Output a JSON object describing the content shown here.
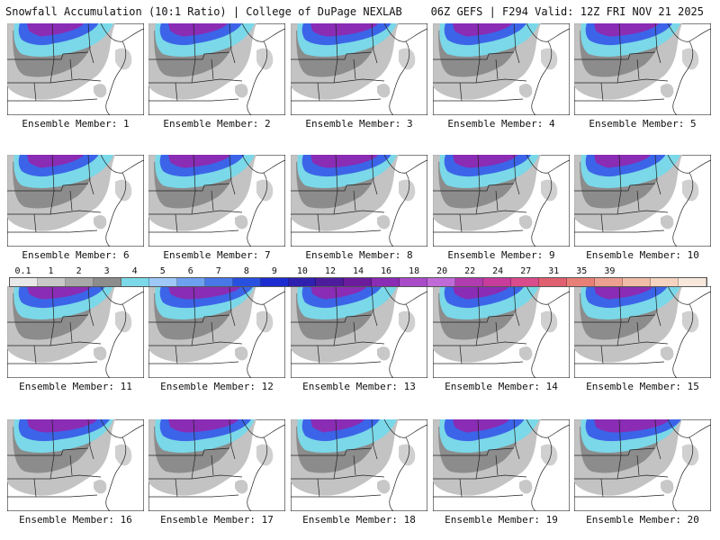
{
  "header": {
    "left": "Snowfall Accumulation (10:1 Ratio) | College of DuPage NEXLAB",
    "right": "06Z GEFS | F294 Valid: 12Z FRI NOV 21 2025"
  },
  "members": [
    {
      "label": "Ensemble Member: 1",
      "intensity": 0.55
    },
    {
      "label": "Ensemble Member: 2",
      "intensity": 0.6
    },
    {
      "label": "Ensemble Member: 3",
      "intensity": 0.75
    },
    {
      "label": "Ensemble Member: 4",
      "intensity": 0.6
    },
    {
      "label": "Ensemble Member: 5",
      "intensity": 0.7
    },
    {
      "label": "Ensemble Member: 6",
      "intensity": 0.55
    },
    {
      "label": "Ensemble Member: 7",
      "intensity": 0.65
    },
    {
      "label": "Ensemble Member: 8",
      "intensity": 0.75
    },
    {
      "label": "Ensemble Member: 9",
      "intensity": 0.7
    },
    {
      "label": "Ensemble Member: 10",
      "intensity": 0.55
    },
    {
      "label": "Ensemble Member: 11",
      "intensity": 0.7
    },
    {
      "label": "Ensemble Member: 12",
      "intensity": 0.85
    },
    {
      "label": "Ensemble Member: 13",
      "intensity": 0.55
    },
    {
      "label": "Ensemble Member: 14",
      "intensity": 0.55
    },
    {
      "label": "Ensemble Member: 15",
      "intensity": 0.6
    },
    {
      "label": "Ensemble Member: 16",
      "intensity": 0.8
    },
    {
      "label": "Ensemble Member: 17",
      "intensity": 0.8
    },
    {
      "label": "Ensemble Member: 18",
      "intensity": 0.5
    },
    {
      "label": "Ensemble Member: 19",
      "intensity": 0.55
    },
    {
      "label": "Ensemble Member: 20",
      "intensity": 0.9
    }
  ],
  "colorbar": {
    "labels": [
      "0.1",
      "1",
      "2",
      "3",
      "4",
      "5",
      "6",
      "7",
      "8",
      "9",
      "10",
      "12",
      "14",
      "16",
      "18",
      "20",
      "22",
      "24",
      "27",
      "31",
      "35",
      "39"
    ],
    "colors": [
      "#e8e8e8",
      "#c8c8c8",
      "#a8a8a8",
      "#8c8c8c",
      "#7ad8e8",
      "#9ec8f8",
      "#6ea0f0",
      "#4878e8",
      "#2850e0",
      "#1c2cd0",
      "#3020b0",
      "#4c1c9c",
      "#6a1c9c",
      "#8a2cb4",
      "#a84cc8",
      "#c06ad8",
      "#b03cb0",
      "#c83c9c",
      "#d84c8c",
      "#e06070",
      "#e88078",
      "#eca090",
      "#f0bca8",
      "#f4d4c0",
      "#f8e8dc"
    ]
  }
}
